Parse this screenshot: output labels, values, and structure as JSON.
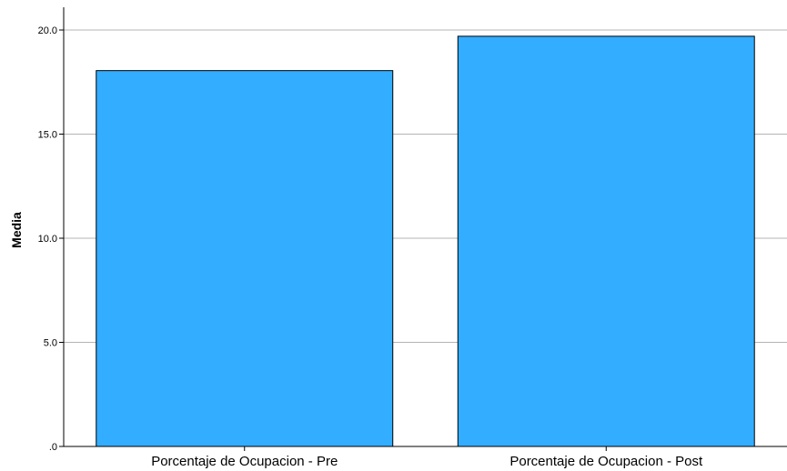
{
  "chart_data": {
    "type": "bar",
    "categories": [
      "Porcentaje de Ocupacion - Pre",
      "Porcentaje de Ocupacion - Post"
    ],
    "values": [
      18.05,
      19.7
    ],
    "ylabel": "Media",
    "xlabel": "",
    "ylim": [
      0,
      20.0
    ],
    "yticks": [
      0,
      5,
      10,
      15,
      20
    ],
    "ytick_labels": [
      ".0",
      "5.0",
      "10.0",
      "15.0",
      "20.0"
    ],
    "grid": true,
    "bar_color": "#33ADFF",
    "bar_edge_color": "#000000",
    "grid_color": "#B4B4B4"
  }
}
